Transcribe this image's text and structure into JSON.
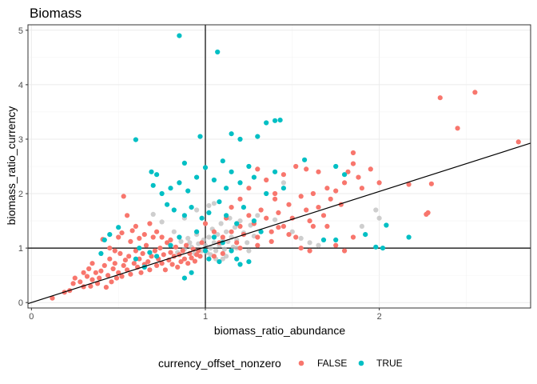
{
  "chart_data": {
    "type": "scatter",
    "title": "Biomass",
    "xlabel": "biomass_ratio_abundance",
    "ylabel": "biomass_ratio_currency",
    "xlim": [
      -0.02,
      2.87
    ],
    "ylim": [
      -0.1,
      5.1
    ],
    "x_ticks": [
      0,
      1,
      2
    ],
    "y_ticks": [
      0,
      1,
      2,
      3,
      4,
      5
    ],
    "x_tick_labels": [
      "0",
      "1",
      "2"
    ],
    "y_tick_labels": [
      "0",
      "1",
      "2",
      "3",
      "4",
      "5"
    ],
    "grid": true,
    "reference_lines": {
      "x": 1,
      "y": 1
    },
    "fit_line": {
      "intercept": 0.0,
      "slope": 1.02
    },
    "legend": {
      "title": "currency_offset_nonzero",
      "position": "bottom",
      "entries": [
        {
          "label": "FALSE",
          "color": "#F8766D"
        },
        {
          "label": "TRUE",
          "color": "#00BFC4"
        }
      ]
    },
    "series": [
      {
        "name": "FALSE",
        "color": "#F8766D",
        "points": [
          [
            0.12,
            0.08
          ],
          [
            0.19,
            0.19
          ],
          [
            0.22,
            0.22
          ],
          [
            0.24,
            0.35
          ],
          [
            0.28,
            0.38
          ],
          [
            0.3,
            0.29
          ],
          [
            0.32,
            0.48
          ],
          [
            0.33,
            0.62
          ],
          [
            0.34,
            0.3
          ],
          [
            0.35,
            0.42
          ],
          [
            0.37,
            0.55
          ],
          [
            0.38,
            0.35
          ],
          [
            0.39,
            0.45
          ],
          [
            0.4,
            0.58
          ],
          [
            0.41,
            1.16
          ],
          [
            0.42,
            0.68
          ],
          [
            0.43,
            0.28
          ],
          [
            0.44,
            0.5
          ],
          [
            0.45,
            0.8
          ],
          [
            0.46,
            0.38
          ],
          [
            0.47,
            0.62
          ],
          [
            0.48,
            0.72
          ],
          [
            0.49,
            0.45
          ],
          [
            0.5,
            0.55
          ],
          [
            0.51,
            0.9
          ],
          [
            0.52,
            0.48
          ],
          [
            0.53,
            0.68
          ],
          [
            0.54,
            0.78
          ],
          [
            0.55,
            0.6
          ],
          [
            0.56,
            0.85
          ],
          [
            0.57,
            0.52
          ],
          [
            0.58,
            1.32
          ],
          [
            0.59,
            0.72
          ],
          [
            0.6,
            0.95
          ],
          [
            0.61,
            0.65
          ],
          [
            0.62,
            0.8
          ],
          [
            0.63,
            0.55
          ],
          [
            0.64,
            0.9
          ],
          [
            0.65,
            0.7
          ],
          [
            0.66,
            1.05
          ],
          [
            0.67,
            0.75
          ],
          [
            0.68,
            0.6
          ],
          [
            0.69,
            0.85
          ],
          [
            0.7,
            1.2
          ],
          [
            0.71,
            0.95
          ],
          [
            0.72,
            0.68
          ],
          [
            0.73,
            0.8
          ],
          [
            0.74,
            1.0
          ],
          [
            0.75,
            0.72
          ],
          [
            0.76,
            0.88
          ],
          [
            0.77,
            0.6
          ],
          [
            0.78,
            1.1
          ],
          [
            0.79,
            0.78
          ],
          [
            0.8,
            0.92
          ],
          [
            0.81,
            0.7
          ],
          [
            0.82,
            0.85
          ],
          [
            0.83,
            1.02
          ],
          [
            0.84,
            0.65
          ],
          [
            0.85,
            0.88
          ],
          [
            0.86,
            0.75
          ],
          [
            0.87,
            0.95
          ],
          [
            0.88,
            0.8
          ],
          [
            0.89,
            1.05
          ],
          [
            0.9,
            0.72
          ],
          [
            0.91,
            0.9
          ],
          [
            0.92,
            0.82
          ],
          [
            0.93,
            0.98
          ],
          [
            0.94,
            0.76
          ],
          [
            0.95,
            0.88
          ],
          [
            0.96,
            0.95
          ],
          [
            0.6,
            1.4
          ],
          [
            0.55,
            1.6
          ],
          [
            0.53,
            1.95
          ],
          [
            0.52,
            1.28
          ],
          [
            0.5,
            1.2
          ],
          [
            0.57,
            1.12
          ],
          [
            0.62,
            1.18
          ],
          [
            0.65,
            1.25
          ],
          [
            0.68,
            1.45
          ],
          [
            0.72,
            1.3
          ],
          [
            0.75,
            1.2
          ],
          [
            0.8,
            1.15
          ],
          [
            0.45,
            1.0
          ],
          [
            0.48,
            0.95
          ],
          [
            0.35,
            0.72
          ],
          [
            0.3,
            0.55
          ],
          [
            0.25,
            0.45
          ],
          [
            1.05,
            0.85
          ],
          [
            1.08,
            1.1
          ],
          [
            1.1,
            1.2
          ],
          [
            1.12,
            1.55
          ],
          [
            1.15,
            1.3
          ],
          [
            1.18,
            1.1
          ],
          [
            1.2,
            1.4
          ],
          [
            1.22,
            1.25
          ],
          [
            1.25,
            1.6
          ],
          [
            1.28,
            1.45
          ],
          [
            1.3,
            1.2
          ],
          [
            1.32,
            1.7
          ],
          [
            1.35,
            1.55
          ],
          [
            1.38,
            1.3
          ],
          [
            1.4,
            1.9
          ],
          [
            1.42,
            1.65
          ],
          [
            1.45,
            1.4
          ],
          [
            1.48,
            1.8
          ],
          [
            1.5,
            1.55
          ],
          [
            1.52,
            1.2
          ],
          [
            1.55,
            1.95
          ],
          [
            1.58,
            1.7
          ],
          [
            1.6,
            1.5
          ],
          [
            1.62,
            2.0
          ],
          [
            1.65,
            1.75
          ],
          [
            1.68,
            1.6
          ],
          [
            1.7,
            2.1
          ],
          [
            1.72,
            1.9
          ],
          [
            1.75,
            2.05
          ],
          [
            1.78,
            1.8
          ],
          [
            1.8,
            2.2
          ],
          [
            1.82,
            2.4
          ],
          [
            1.85,
            2.55
          ],
          [
            1.88,
            2.3
          ],
          [
            1.9,
            2.1
          ],
          [
            1.95,
            2.45
          ],
          [
            2.0,
            2.2
          ],
          [
            1.15,
            1.75
          ],
          [
            1.2,
            1.9
          ],
          [
            1.25,
            2.1
          ],
          [
            1.3,
            2.45
          ],
          [
            1.35,
            2.25
          ],
          [
            1.4,
            2.0
          ],
          [
            1.45,
            2.35
          ],
          [
            1.52,
            2.5
          ],
          [
            1.58,
            2.45
          ],
          [
            1.65,
            2.4
          ],
          [
            1.85,
            2.75
          ],
          [
            1.7,
            1.4
          ],
          [
            1.75,
            1.05
          ],
          [
            1.8,
            0.95
          ],
          [
            1.85,
            1.2
          ],
          [
            1.55,
            1.0
          ],
          [
            1.6,
            0.95
          ],
          [
            2.17,
            2.17
          ],
          [
            2.3,
            2.18
          ],
          [
            2.35,
            3.76
          ],
          [
            2.45,
            3.2
          ],
          [
            2.55,
            3.86
          ],
          [
            2.8,
            2.95
          ],
          [
            2.27,
            1.62
          ],
          [
            2.28,
            1.65
          ],
          [
            1.1,
            0.9
          ],
          [
            1.2,
            1.0
          ],
          [
            1.3,
            1.05
          ],
          [
            1.38,
            1.12
          ],
          [
            1.42,
            1.38
          ],
          [
            1.48,
            1.25
          ],
          [
            1.62,
            1.4
          ],
          [
            1.05,
            1.3
          ],
          [
            1.0,
            1.45
          ],
          [
            0.98,
            1.1
          ],
          [
            0.97,
            0.85
          ]
        ]
      },
      {
        "name": "TRUE",
        "color": "#00BFC4",
        "points": [
          [
            0.85,
            4.9
          ],
          [
            1.07,
            4.6
          ],
          [
            1.4,
            3.34
          ],
          [
            1.43,
            3.35
          ],
          [
            1.35,
            3.3
          ],
          [
            1.15,
            3.1
          ],
          [
            0.6,
            2.99
          ],
          [
            0.97,
            3.05
          ],
          [
            1.2,
            3.0
          ],
          [
            1.3,
            3.05
          ],
          [
            0.69,
            2.4
          ],
          [
            0.72,
            2.35
          ],
          [
            0.88,
            2.56
          ],
          [
            1.0,
            2.48
          ],
          [
            1.1,
            2.6
          ],
          [
            1.15,
            2.4
          ],
          [
            1.25,
            2.5
          ],
          [
            1.4,
            2.4
          ],
          [
            0.7,
            2.15
          ],
          [
            0.75,
            2.0
          ],
          [
            0.8,
            2.1
          ],
          [
            0.85,
            2.2
          ],
          [
            0.9,
            2.05
          ],
          [
            0.95,
            2.3
          ],
          [
            1.05,
            2.25
          ],
          [
            1.12,
            2.1
          ],
          [
            1.2,
            2.2
          ],
          [
            1.28,
            2.3
          ],
          [
            1.35,
            2.0
          ],
          [
            1.45,
            2.1
          ],
          [
            1.57,
            2.62
          ],
          [
            1.75,
            2.5
          ],
          [
            1.8,
            2.35
          ],
          [
            0.78,
            1.8
          ],
          [
            0.82,
            1.7
          ],
          [
            0.88,
            1.6
          ],
          [
            0.92,
            1.75
          ],
          [
            0.98,
            1.55
          ],
          [
            1.02,
            1.65
          ],
          [
            1.08,
            1.85
          ],
          [
            1.12,
            1.6
          ],
          [
            1.18,
            1.45
          ],
          [
            1.22,
            1.75
          ],
          [
            1.28,
            1.5
          ],
          [
            1.32,
            1.3
          ],
          [
            0.5,
            1.38
          ],
          [
            0.45,
            1.25
          ],
          [
            0.42,
            1.15
          ],
          [
            0.4,
            0.9
          ],
          [
            0.62,
            1.0
          ],
          [
            0.68,
            0.92
          ],
          [
            0.72,
            0.85
          ],
          [
            0.95,
            1.3
          ],
          [
            1.05,
            1.2
          ],
          [
            1.1,
            1.1
          ],
          [
            1.15,
            0.95
          ],
          [
            1.18,
            0.8
          ],
          [
            1.2,
            0.7
          ],
          [
            1.25,
            0.75
          ],
          [
            0.88,
            0.45
          ],
          [
            0.92,
            0.55
          ],
          [
            1.68,
            1.15
          ],
          [
            1.75,
            1.15
          ],
          [
            1.92,
            1.25
          ],
          [
            1.98,
            1.02
          ],
          [
            2.02,
            1.0
          ],
          [
            2.04,
            1.42
          ],
          [
            2.17,
            1.2
          ],
          [
            0.6,
            0.8
          ],
          [
            0.65,
            0.65
          ],
          [
            1.0,
            0.95
          ],
          [
            1.02,
            0.8
          ],
          [
            1.08,
            0.75
          ],
          [
            0.85,
            1.2
          ],
          [
            0.8,
            1.05
          ]
        ]
      },
      {
        "name": "",
        "color": "#bebebe",
        "points": [
          [
            0.8,
            1.05
          ],
          [
            0.84,
            0.92
          ],
          [
            0.86,
            1.12
          ],
          [
            0.88,
            0.98
          ],
          [
            0.9,
            1.18
          ],
          [
            0.92,
            1.02
          ],
          [
            0.94,
            0.9
          ],
          [
            0.95,
            1.25
          ],
          [
            0.96,
            1.08
          ],
          [
            0.98,
            0.95
          ],
          [
            0.99,
            1.15
          ],
          [
            1.0,
            1.05
          ],
          [
            1.01,
            0.92
          ],
          [
            1.02,
            1.2
          ],
          [
            1.03,
            1.0
          ],
          [
            1.04,
            1.35
          ],
          [
            1.05,
            1.1
          ],
          [
            1.06,
            0.95
          ],
          [
            1.07,
            1.25
          ],
          [
            1.08,
            1.05
          ],
          [
            1.09,
            1.45
          ],
          [
            1.1,
            1.15
          ],
          [
            1.11,
            0.98
          ],
          [
            1.12,
            1.3
          ],
          [
            1.13,
            1.12
          ],
          [
            1.14,
            1.55
          ],
          [
            1.15,
            1.2
          ],
          [
            1.16,
            1.02
          ],
          [
            1.17,
            1.38
          ],
          [
            1.18,
            1.15
          ],
          [
            1.2,
            1.5
          ],
          [
            1.22,
            1.28
          ],
          [
            1.24,
            1.1
          ],
          [
            1.26,
            1.42
          ],
          [
            1.28,
            1.22
          ],
          [
            1.3,
            1.6
          ],
          [
            1.02,
            1.78
          ],
          [
            1.05,
            1.82
          ],
          [
            0.95,
            1.7
          ],
          [
            0.88,
            1.55
          ],
          [
            0.7,
            1.62
          ],
          [
            0.75,
            1.48
          ],
          [
            0.82,
            1.3
          ],
          [
            1.4,
            1.52
          ],
          [
            1.45,
            2.2
          ],
          [
            1.5,
            1.3
          ],
          [
            1.55,
            1.18
          ],
          [
            1.6,
            1.1
          ],
          [
            1.65,
            1.05
          ],
          [
            1.98,
            1.7
          ],
          [
            2.0,
            1.55
          ],
          [
            1.9,
            1.4
          ],
          [
            1.1,
            0.8
          ],
          [
            1.12,
            0.85
          ],
          [
            0.97,
            0.85
          ],
          [
            1.03,
            0.88
          ],
          [
            1.06,
            0.8
          ],
          [
            1.18,
            1.0
          ],
          [
            0.91,
            1.1
          ],
          [
            1.25,
            0.95
          ]
        ]
      }
    ]
  }
}
